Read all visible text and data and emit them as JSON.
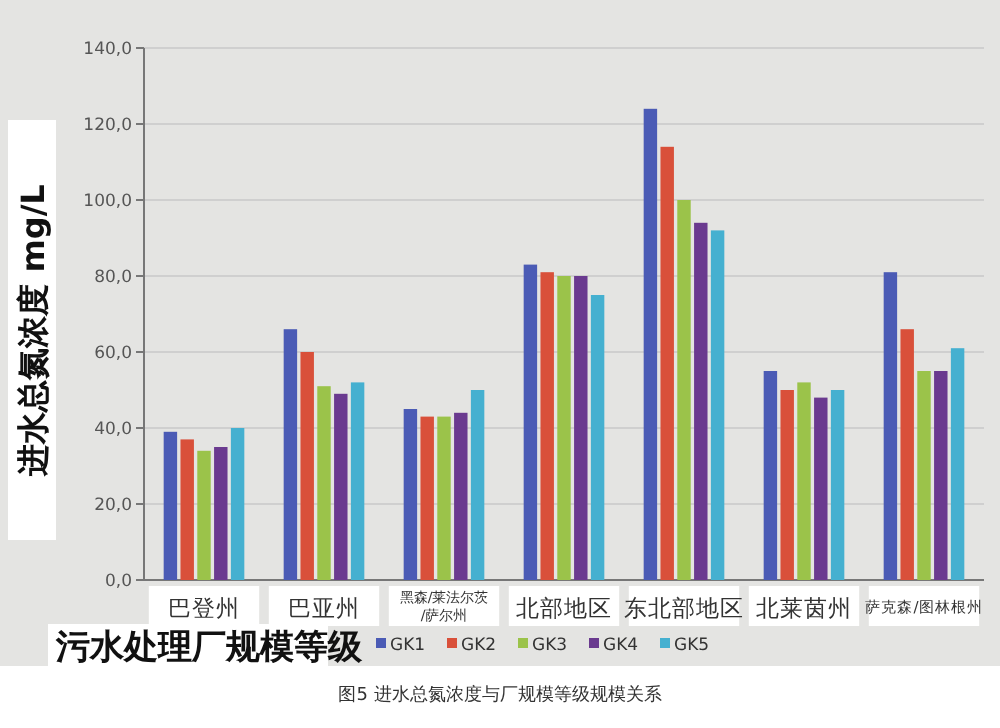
{
  "chart_data": {
    "type": "bar",
    "xlabel": "污水处理厂规模等级",
    "ylabel": "进水总氮浓度  mg/L",
    "annotations": [
      "图5  进水总氮浓度与厂规模等级规模关系"
    ],
    "categories": [
      "巴登州",
      "巴亚州",
      "黑森/莱法尔茨/萨尔州",
      "北部地区",
      "东北部地区",
      "北莱茵州",
      "萨克森/图林根州"
    ],
    "series": [
      {
        "name": "GK1",
        "color": "#4b5bb5",
        "values": [
          39,
          66,
          45,
          83,
          124,
          55,
          81
        ]
      },
      {
        "name": "GK2",
        "color": "#d9503a",
        "values": [
          37,
          60,
          43,
          81,
          114,
          50,
          66
        ]
      },
      {
        "name": "GK3",
        "color": "#9bc34a",
        "values": [
          34,
          51,
          43,
          80,
          100,
          52,
          55
        ]
      },
      {
        "name": "GK4",
        "color": "#6a3a8f",
        "values": [
          35,
          49,
          44,
          80,
          94,
          48,
          55
        ]
      },
      {
        "name": "GK5",
        "color": "#45b0d0",
        "values": [
          40,
          52,
          50,
          75,
          92,
          50,
          61
        ]
      }
    ],
    "ylim": [
      0,
      140
    ],
    "yticks": [
      {
        "value": 0,
        "label": "0,0"
      },
      {
        "value": 20,
        "label": "20,0"
      },
      {
        "value": 40,
        "label": "40,0"
      },
      {
        "value": 60,
        "label": "60,0"
      },
      {
        "value": 80,
        "label": "80,0"
      },
      {
        "value": 100,
        "label": "100,0"
      },
      {
        "value": 120,
        "label": "120,0"
      },
      {
        "value": 140,
        "label": "140,0"
      }
    ],
    "grid": "y",
    "legend": "bottom"
  }
}
